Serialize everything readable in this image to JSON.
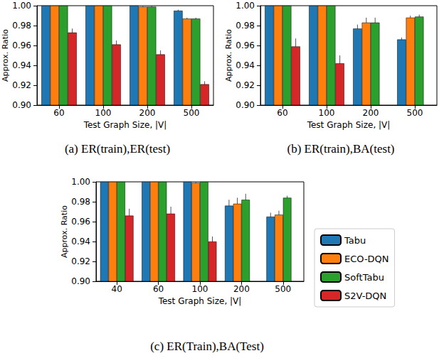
{
  "chart_data": [
    {
      "type": "bar",
      "title": "(a) ER(train),ER(test)",
      "x_label": "Test Graph Size, |V|",
      "y_label": "Approx. Ratio",
      "categories": [
        "60",
        "100",
        "200",
        "500"
      ],
      "series": [
        {
          "name": "Tabu",
          "color": "#1f77b4",
          "values": [
            1.0,
            1.0,
            1.0,
            0.995
          ],
          "errors": [
            0,
            0,
            0,
            0.001
          ]
        },
        {
          "name": "ECO-DQN",
          "color": "#ff7f0e",
          "values": [
            1.0,
            1.0,
            0.999,
            0.987
          ],
          "errors": [
            0,
            0,
            0.001,
            0.001
          ]
        },
        {
          "name": "SoftTabu",
          "color": "#2ca02c",
          "values": [
            1.0,
            1.0,
            0.999,
            0.987
          ],
          "errors": [
            0,
            0,
            0.001,
            0.001
          ]
        },
        {
          "name": "S2V-DQN",
          "color": "#d62728",
          "values": [
            0.973,
            0.961,
            0.951,
            0.921
          ],
          "errors": [
            0.004,
            0.004,
            0.004,
            0.003
          ]
        }
      ],
      "ylim": [
        0.9,
        1.0
      ],
      "yticks": [
        {
          "value": 0.9,
          "label": "0.90"
        },
        0.92,
        0.94,
        0.96,
        0.98,
        {
          "value": 1.0,
          "label": "1.00"
        }
      ],
      "grid": false
    },
    {
      "type": "bar",
      "title": "(b) ER(train),BA(test)",
      "x_label": "Test Graph Size, |V|",
      "y_label": "Approx. Ratio",
      "categories": [
        "60",
        "100",
        "200",
        "500"
      ],
      "series": [
        {
          "name": "Tabu",
          "color": "#1f77b4",
          "values": [
            1.0,
            1.0,
            0.977,
            0.966
          ],
          "errors": [
            0,
            0,
            0.004,
            0.002
          ]
        },
        {
          "name": "ECO-DQN",
          "color": "#ff7f0e",
          "values": [
            1.0,
            1.0,
            0.983,
            0.988
          ],
          "errors": [
            0,
            0,
            0.005,
            0.002
          ]
        },
        {
          "name": "SoftTabu",
          "color": "#2ca02c",
          "values": [
            1.0,
            1.0,
            0.983,
            0.989
          ],
          "errors": [
            0,
            0,
            0.005,
            0.002
          ]
        },
        {
          "name": "S2V-DQN",
          "color": "#d62728",
          "values": [
            0.959,
            0.942,
            null,
            null
          ],
          "errors": [
            0.008,
            0.008,
            null,
            null
          ]
        }
      ],
      "ylim": [
        0.9,
        1.0
      ],
      "yticks": [
        {
          "value": 0.9,
          "label": "0.90"
        },
        0.92,
        0.94,
        0.96,
        0.98,
        {
          "value": 1.0,
          "label": "1.00"
        }
      ],
      "grid": false
    },
    {
      "type": "bar",
      "title": "(c) ER(Train),BA(Test)",
      "x_label": "Test Graph Size, |V|",
      "y_label": "Approx. Ratio",
      "categories": [
        "40",
        "60",
        "100",
        "200",
        "500"
      ],
      "series": [
        {
          "name": "Tabu",
          "color": "#1f77b4",
          "values": [
            1.0,
            1.0,
            1.0,
            0.976,
            0.965
          ],
          "errors": [
            0,
            0,
            0,
            0.006,
            0.004
          ]
        },
        {
          "name": "ECO-DQN",
          "color": "#ff7f0e",
          "values": [
            1.0,
            1.0,
            0.999,
            0.978,
            0.967
          ],
          "errors": [
            0,
            0,
            0.001,
            0.006,
            0.004
          ]
        },
        {
          "name": "SoftTabu",
          "color": "#2ca02c",
          "values": [
            1.0,
            1.0,
            1.0,
            0.982,
            0.984
          ],
          "errors": [
            0,
            0,
            0,
            0.006,
            0.002
          ]
        },
        {
          "name": "S2V-DQN",
          "color": "#d62728",
          "values": [
            0.966,
            0.968,
            0.94,
            null,
            null
          ],
          "errors": [
            0.007,
            0.007,
            0.005,
            null,
            null
          ]
        }
      ],
      "ylim": [
        0.9,
        1.0
      ],
      "yticks": [
        {
          "value": 0.9,
          "label": "0.90"
        },
        0.92,
        0.94,
        0.96,
        0.98,
        {
          "value": 1.0,
          "label": "1.00"
        }
      ],
      "grid": false,
      "legend": "lower right"
    }
  ]
}
